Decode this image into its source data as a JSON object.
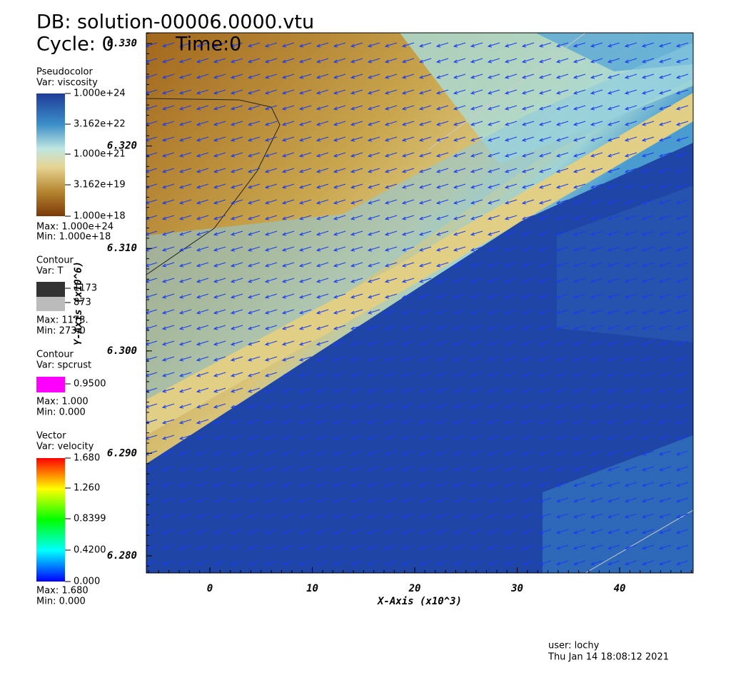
{
  "header": {
    "database": "DB: solution-00006.0000.vtu",
    "cycle": "Cycle: 0",
    "time": "Time:0"
  },
  "legends": [
    {
      "plot": "Pseudocolor",
      "variable": "Var: viscosity",
      "ticks": [
        "1.000e+24",
        "3.162e+22",
        "1.000e+21",
        "3.162e+19",
        "1.000e+18"
      ],
      "max": "Max:  1.000e+24",
      "min": "Min:  1.000e+18"
    },
    {
      "plot": "Contour",
      "variable": "Var: T",
      "levels": [
        "1173",
        "873"
      ],
      "max": "Max: 1173.",
      "min": "Min: 273.0"
    },
    {
      "plot": "Contour",
      "variable": "Var: spcrust",
      "levels": [
        "0.9500"
      ],
      "max": "Max: 1.000",
      "min": "Min: 0.000"
    },
    {
      "plot": "Vector",
      "variable": "Var: velocity",
      "ticks": [
        "1.680",
        "1.260",
        "0.8399",
        "0.4200",
        "0.000"
      ],
      "max": "Max: 1.680",
      "min": "Min: 0.000"
    }
  ],
  "plot": {
    "x_axis": {
      "label": "X-Axis (x10^3)",
      "ticks": [
        "0",
        "10",
        "20",
        "30",
        "40"
      ]
    },
    "y_axis": {
      "label": "Y-Axis (x10^6)",
      "ticks": [
        "6.330",
        "6.320",
        "6.310",
        "6.300",
        "6.290",
        "6.280"
      ]
    }
  },
  "footer": {
    "user": "user: lochy",
    "date": "Thu Jan 14 18:08:12 2021"
  }
}
